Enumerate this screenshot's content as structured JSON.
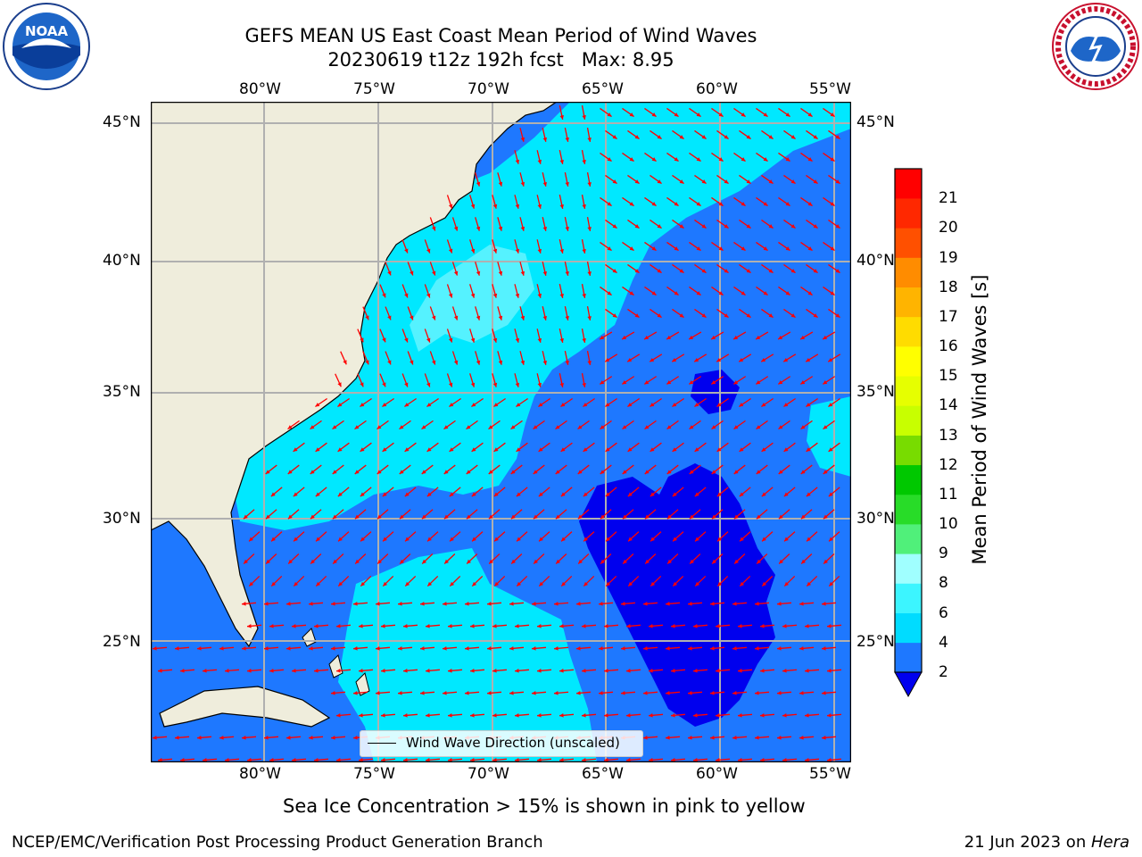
{
  "title_line1": "GEFS MEAN US East Coast Mean Period of Wind Waves",
  "title_line2": "20230619 t12z 192h fcst   Max: 8.95",
  "lon_ticks": [
    "80°W",
    "75°W",
    "70°W",
    "65°W",
    "60°W",
    "55°W"
  ],
  "lat_ticks": [
    "45°N",
    "40°N",
    "35°N",
    "30°N",
    "25°N"
  ],
  "colorbar": {
    "label": "Mean Period of Wind Waves [s]",
    "ticks": [
      "2",
      "4",
      "6",
      "8",
      "9",
      "10",
      "11",
      "12",
      "13",
      "14",
      "15",
      "16",
      "17",
      "18",
      "19",
      "20",
      "21"
    ],
    "colors": [
      "#1e78ff",
      "#00dcff",
      "#3cf5ff",
      "#a0ffff",
      "#50f07a",
      "#28dc28",
      "#00c800",
      "#78dc00",
      "#c8ff00",
      "#e6ff00",
      "#ffff00",
      "#ffdc00",
      "#ffb400",
      "#ff8c00",
      "#ff5000",
      "#ff2800",
      "#ff0000"
    ],
    "under_color": "#0000ee"
  },
  "legend_label": "Wind Wave Direction (unscaled)",
  "ice_note": "Sea Ice Concentration > 15% is shown in pink to yellow",
  "footer_left": "NCEP/EMC/Verification Post Processing Product Generation Branch",
  "footer_date": "21 Jun 2023 on ",
  "footer_machine": "Hera",
  "logos": {
    "noaa": "NOAA",
    "nws": "NATIONAL WEATHER SERVICE"
  },
  "map_colors": {
    "land": "#efeddc",
    "low": "#1e78ff",
    "mid": "#00e8ff",
    "high": "#55f2ff",
    "min": "#0000ee",
    "arrow": "#ff0000"
  }
}
